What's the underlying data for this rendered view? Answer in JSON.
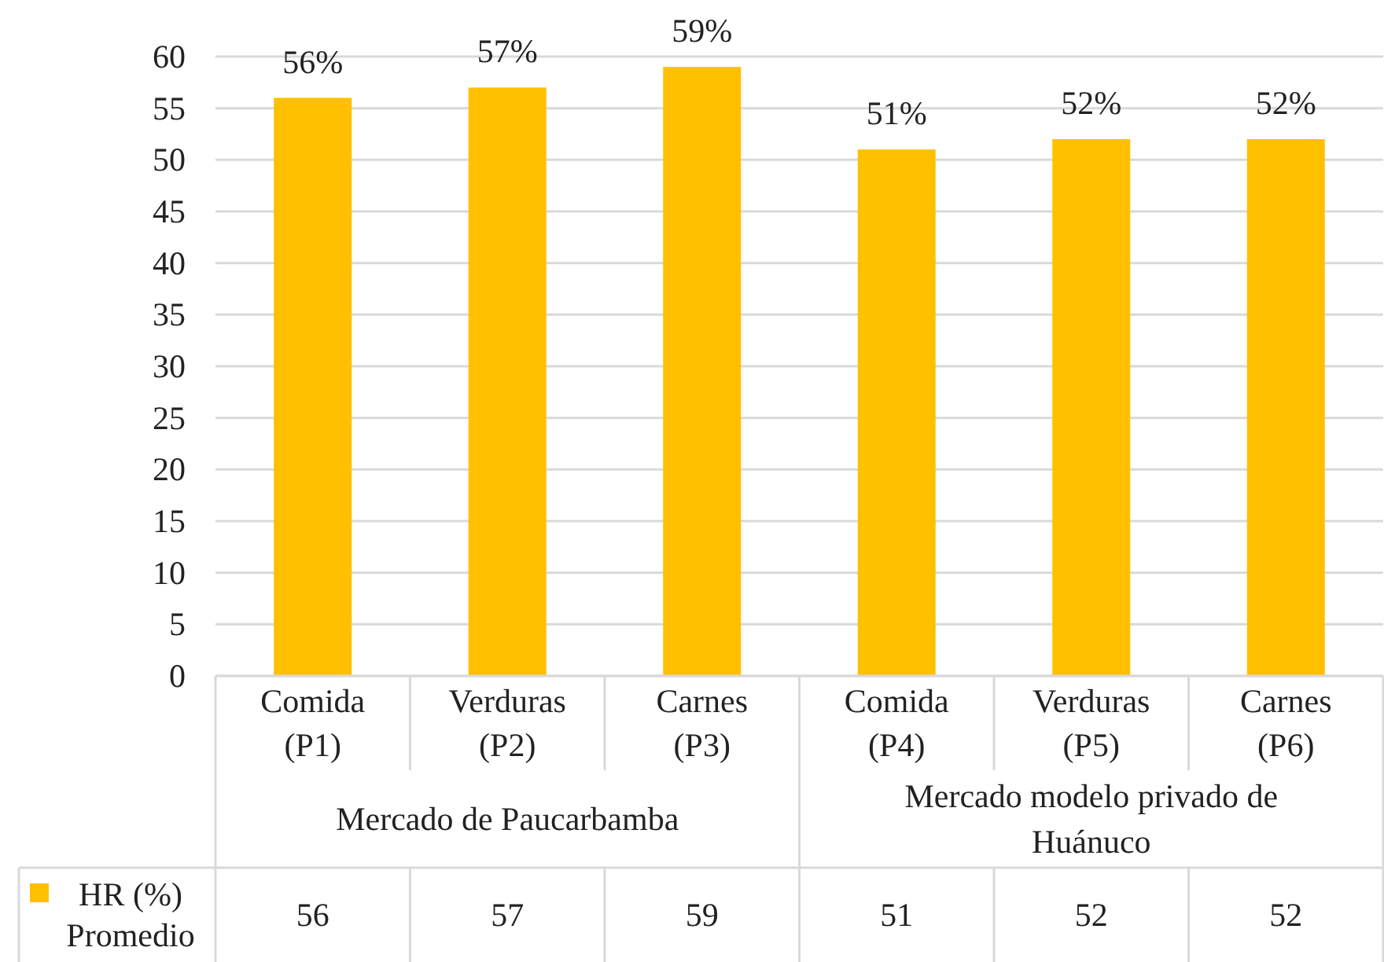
{
  "chart_data": {
    "type": "bar",
    "categories": [
      "Comida (P1)",
      "Verduras (P2)",
      "Carnes (P3)",
      "Comida (P4)",
      "Verduras (P5)",
      "Carnes (P6)"
    ],
    "series": [
      {
        "name": "HR (%) Promedio",
        "color": "#ffc000",
        "values": [
          56,
          57,
          59,
          51,
          52,
          52
        ]
      }
    ],
    "data_labels": true,
    "ylim": [
      0,
      60
    ],
    "yticks": [
      0,
      5,
      10,
      15,
      20,
      25,
      30,
      35,
      40,
      45,
      50,
      55,
      60
    ],
    "grid": "y",
    "legend": "bottom left",
    "annotations": [
      "Mercado de Paucarbamba",
      "Mercado modelo privado de Huánuco",
      {
        "text": "56%",
        "x": "Comida (P1)",
        "y": 56
      },
      {
        "text": "57%",
        "x": "Verduras (P2)",
        "y": 57
      },
      {
        "text": "59%",
        "x": "Carnes (P3)",
        "y": 59
      },
      {
        "text": "51%",
        "x": "Comida (P4)",
        "y": 51
      },
      {
        "text": "52%",
        "x": "Verduras (P5)",
        "y": 52
      },
      {
        "text": "52%",
        "x": "Carnes (P6)",
        "y": 52
      }
    ]
  }
}
